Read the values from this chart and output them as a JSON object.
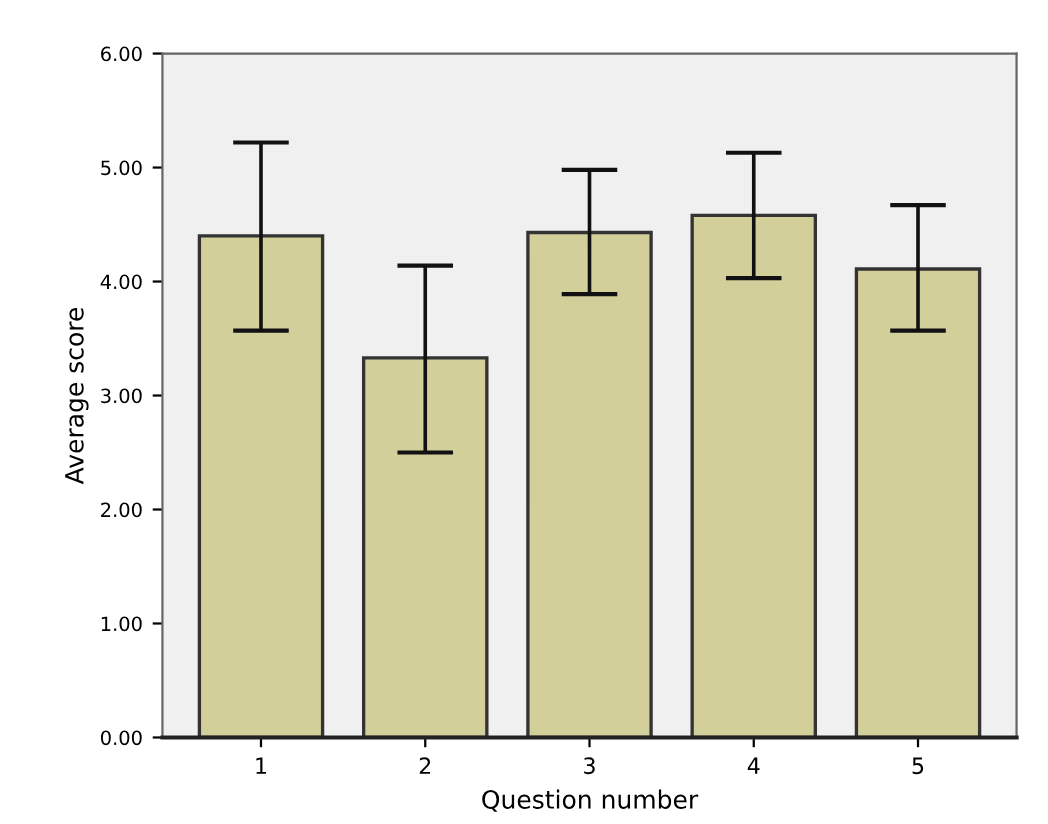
{
  "chart_data": {
    "type": "bar",
    "xlabel": "Question number",
    "ylabel": "Average score",
    "categories": [
      "1",
      "2",
      "3",
      "4",
      "5"
    ],
    "values": [
      4.4,
      3.33,
      4.43,
      4.58,
      4.11
    ],
    "errors": [
      [
        3.57,
        5.22
      ],
      [
        2.5,
        4.14
      ],
      [
        3.89,
        4.98
      ],
      [
        4.03,
        5.13
      ],
      [
        3.57,
        4.67
      ]
    ],
    "color": "#d3cf9a",
    "ylim": [
      0,
      6
    ],
    "yticks": [
      {
        "value": 0,
        "label": "0.00"
      },
      {
        "value": 1,
        "label": "1.00"
      },
      {
        "value": 2,
        "label": "2.00"
      },
      {
        "value": 3,
        "label": "3.00"
      },
      {
        "value": 4,
        "label": "4.00"
      },
      {
        "value": 5,
        "label": "5.00"
      },
      {
        "value": 6,
        "label": "6.00"
      }
    ],
    "grid": false,
    "legend": false
  }
}
